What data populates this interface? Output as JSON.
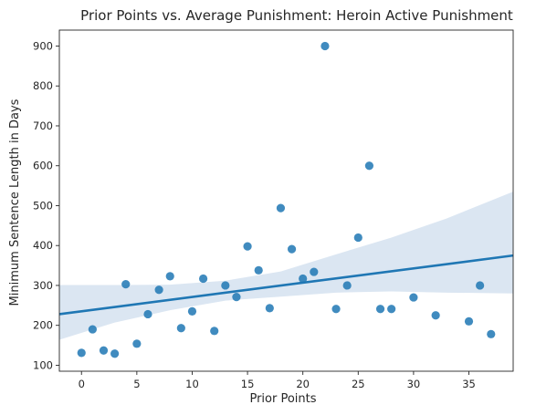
{
  "chart_data": {
    "type": "scatter",
    "title": "Prior Points vs. Average Punishment: Heroin Active Punishment",
    "xlabel": "Prior Points",
    "ylabel": "Minimum Sentence Length in Days",
    "xlim": [
      -2,
      39
    ],
    "ylim": [
      85,
      940
    ],
    "xticks": [
      "0",
      "5",
      "10",
      "15",
      "20",
      "25",
      "30",
      "35"
    ],
    "yticks": [
      "100",
      "200",
      "300",
      "400",
      "500",
      "600",
      "700",
      "800",
      "900"
    ],
    "grid": false,
    "legend": "none",
    "points": [
      {
        "x": 0,
        "y": 131
      },
      {
        "x": 1,
        "y": 190
      },
      {
        "x": 2,
        "y": 137
      },
      {
        "x": 3,
        "y": 129
      },
      {
        "x": 4,
        "y": 303
      },
      {
        "x": 5,
        "y": 154
      },
      {
        "x": 6,
        "y": 228
      },
      {
        "x": 7,
        "y": 289
      },
      {
        "x": 8,
        "y": 323
      },
      {
        "x": 9,
        "y": 193
      },
      {
        "x": 10,
        "y": 235
      },
      {
        "x": 11,
        "y": 317
      },
      {
        "x": 12,
        "y": 186
      },
      {
        "x": 13,
        "y": 300
      },
      {
        "x": 14,
        "y": 271
      },
      {
        "x": 15,
        "y": 398
      },
      {
        "x": 16,
        "y": 338
      },
      {
        "x": 17,
        "y": 243
      },
      {
        "x": 18,
        "y": 494
      },
      {
        "x": 19,
        "y": 391
      },
      {
        "x": 20,
        "y": 317
      },
      {
        "x": 21,
        "y": 334
      },
      {
        "x": 22,
        "y": 900
      },
      {
        "x": 23,
        "y": 241
      },
      {
        "x": 24,
        "y": 300
      },
      {
        "x": 25,
        "y": 420
      },
      {
        "x": 26,
        "y": 600
      },
      {
        "x": 27,
        "y": 241
      },
      {
        "x": 28,
        "y": 241
      },
      {
        "x": 30,
        "y": 270
      },
      {
        "x": 32,
        "y": 225
      },
      {
        "x": 35,
        "y": 210
      },
      {
        "x": 36,
        "y": 300
      },
      {
        "x": 37,
        "y": 178
      }
    ],
    "regression_line": {
      "x": [
        -2,
        39
      ],
      "y": [
        228,
        375
      ]
    },
    "confidence_band": {
      "x": [
        -2,
        3,
        8,
        13,
        18,
        23,
        28,
        33,
        39
      ],
      "upper": [
        301,
        301,
        302,
        312,
        335,
        378,
        420,
        468,
        535
      ],
      "lower": [
        164,
        207,
        238,
        262,
        272,
        282,
        285,
        282,
        280
      ]
    },
    "colors": {
      "points": "#1f77b4",
      "line": "#1f77b4",
      "band": "#dbe6f2",
      "axes": "#262626"
    }
  }
}
